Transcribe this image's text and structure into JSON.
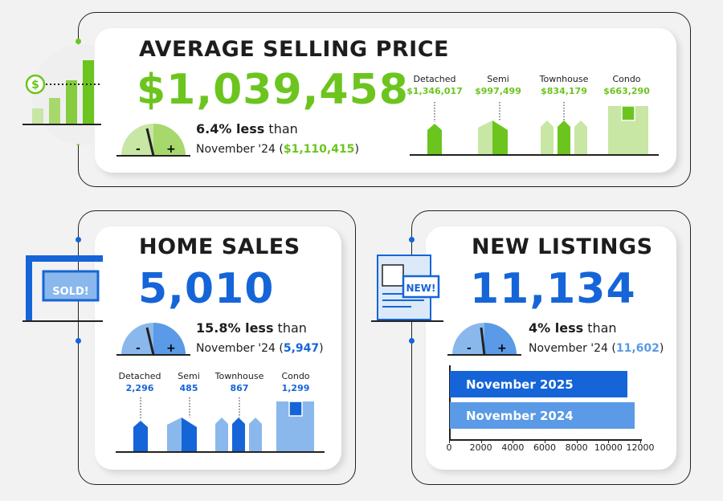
{
  "avg_price": {
    "title": "AVERAGE SELLING PRICE",
    "value": "$1,039,458",
    "change": "6.4% less",
    "than": " than",
    "prev_label": "November '24 (",
    "prev_value": "$1,110,415",
    "close": ")",
    "types": [
      {
        "label": "Detached",
        "value": "$1,346,017"
      },
      {
        "label": "Semi",
        "value": "$997,499"
      },
      {
        "label": "Townhouse",
        "value": "$834,179"
      },
      {
        "label": "Condo",
        "value": "$663,290"
      }
    ]
  },
  "home_sales": {
    "title": "HOME SALES",
    "value": "5,010",
    "change": "15.8% less",
    "than": " than",
    "prev_label": "November '24 (",
    "prev_value": "5,947",
    "close": ")",
    "sign_text": "SOLD!",
    "types": [
      {
        "label": "Detached",
        "value": "2,296"
      },
      {
        "label": "Semi",
        "value": "485"
      },
      {
        "label": "Townhouse",
        "value": "867"
      },
      {
        "label": "Condo",
        "value": "1,299"
      }
    ]
  },
  "new_listings": {
    "title": "NEW LISTINGS",
    "value": "11,134",
    "change": "4% less",
    "than": " than",
    "prev_label": "November '24 (",
    "prev_value": "11,602",
    "close": ")",
    "badge": "NEW!",
    "chart_data": {
      "type": "bar",
      "orientation": "horizontal",
      "categories": [
        "November 2025",
        "November 2024"
      ],
      "values": [
        11134,
        11602
      ],
      "xlim": [
        0,
        12000
      ],
      "xticks": [
        "0",
        "2000",
        "4000",
        "6000",
        "8000",
        "10000",
        "12000"
      ]
    }
  },
  "colors": {
    "green": "#6cc51f",
    "light_green": "#c8e6a4",
    "blue": "#1565d8",
    "light_blue": "#8ab8ec"
  }
}
